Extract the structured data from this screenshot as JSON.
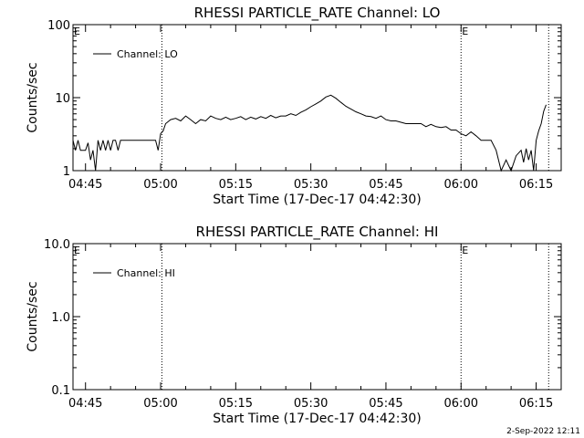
{
  "footer_date": "2-Sep-2022 12:11",
  "colors": {
    "background": "#ffffff",
    "ink": "#000000"
  },
  "chart_data": [
    {
      "type": "line",
      "title": "RHESSI PARTICLE_RATE Channel: LO",
      "xlabel": "Start Time (17-Dec-17 04:42:30)",
      "ylabel": "Counts/sec",
      "yscale": "log",
      "ylim": [
        1,
        100
      ],
      "xlim": [
        "04:42:30",
        "06:20:00"
      ],
      "yticks": [
        "1",
        "10",
        "100"
      ],
      "xticks": [
        "04:45",
        "05:00",
        "05:15",
        "05:30",
        "05:45",
        "06:00",
        "06:15"
      ],
      "grid": false,
      "legend": {
        "position": "top-left",
        "entries": [
          "Channel: LO"
        ]
      },
      "annotations": [
        {
          "text": "E",
          "x": "04:42:30"
        },
        {
          "text": "E",
          "x": "06:00:00"
        }
      ],
      "vlines": [
        "05:00:15",
        "06:00:00",
        "06:17:30"
      ],
      "series": [
        {
          "name": "Channel: LO",
          "x": [
            "04:42:30",
            "04:43:00",
            "04:43:30",
            "04:44:00",
            "04:44:30",
            "04:45:00",
            "04:45:30",
            "04:46:00",
            "04:46:30",
            "04:47:00",
            "04:47:30",
            "04:48:00",
            "04:48:30",
            "04:49:00",
            "04:49:30",
            "04:50:00",
            "04:50:30",
            "04:51:00",
            "04:51:30",
            "04:52:00",
            "04:53:00",
            "04:54:00",
            "04:55:00",
            "04:55:30",
            "04:56:00",
            "04:57:00",
            "04:58:00",
            "04:59:00",
            "04:59:30",
            "05:00:00",
            "05:00:30",
            "05:01:00",
            "05:02:00",
            "05:03:00",
            "05:04:00",
            "05:05:00",
            "05:06:00",
            "05:07:00",
            "05:08:00",
            "05:09:00",
            "05:10:00",
            "05:11:00",
            "05:12:00",
            "05:13:00",
            "05:14:00",
            "05:15:00",
            "05:16:00",
            "05:17:00",
            "05:18:00",
            "05:19:00",
            "05:20:00",
            "05:21:00",
            "05:22:00",
            "05:23:00",
            "05:24:00",
            "05:25:00",
            "05:26:00",
            "05:27:00",
            "05:28:00",
            "05:29:00",
            "05:30:00",
            "05:31:00",
            "05:32:00",
            "05:33:00",
            "05:34:00",
            "05:35:00",
            "05:36:00",
            "05:37:00",
            "05:38:00",
            "05:39:00",
            "05:40:00",
            "05:41:00",
            "05:42:00",
            "05:43:00",
            "05:44:00",
            "05:45:00",
            "05:46:00",
            "05:47:00",
            "05:48:00",
            "05:49:00",
            "05:50:00",
            "05:51:00",
            "05:52:00",
            "05:53:00",
            "05:54:00",
            "05:55:00",
            "05:56:00",
            "05:57:00",
            "05:58:00",
            "05:59:00",
            "06:00:00",
            "06:01:00",
            "06:02:00",
            "06:03:00",
            "06:04:00",
            "06:05:00",
            "06:06:00",
            "06:07:00",
            "06:08:00",
            "06:09:00",
            "06:10:00",
            "06:11:00",
            "06:12:00",
            "06:12:30",
            "06:13:00",
            "06:13:30",
            "06:14:00",
            "06:14:30",
            "06:15:00",
            "06:15:30",
            "06:16:00",
            "06:16:30",
            "06:17:00"
          ],
          "values": [
            2.6,
            1.9,
            2.6,
            1.9,
            1.9,
            1.9,
            2.4,
            1.4,
            1.9,
            1.0,
            2.6,
            1.9,
            2.6,
            1.9,
            2.6,
            1.9,
            2.6,
            2.6,
            1.9,
            2.6,
            2.6,
            2.6,
            2.6,
            2.6,
            2.6,
            2.6,
            2.6,
            2.6,
            1.9,
            3.2,
            3.5,
            4.4,
            5.0,
            5.2,
            4.8,
            5.6,
            5.0,
            4.4,
            5.0,
            4.8,
            5.6,
            5.2,
            5.0,
            5.4,
            5.0,
            5.2,
            5.5,
            5.0,
            5.4,
            5.1,
            5.5,
            5.2,
            5.7,
            5.3,
            5.6,
            5.6,
            6.0,
            5.7,
            6.3,
            6.8,
            7.5,
            8.2,
            9.0,
            10.2,
            10.8,
            9.8,
            8.6,
            7.6,
            7.0,
            6.4,
            6.0,
            5.6,
            5.5,
            5.2,
            5.6,
            5.0,
            4.8,
            4.8,
            4.6,
            4.4,
            4.4,
            4.4,
            4.4,
            4.0,
            4.3,
            4.0,
            3.9,
            4.0,
            3.6,
            3.6,
            3.2,
            3.0,
            3.4,
            3.0,
            2.6,
            2.6,
            2.6,
            1.9,
            1.0,
            1.4,
            1.0,
            1.6,
            1.9,
            1.3,
            2.0,
            1.4,
            1.9,
            1.0,
            2.6,
            3.5,
            4.4,
            6.5,
            8.0
          ]
        }
      ]
    },
    {
      "type": "line",
      "title": "RHESSI PARTICLE_RATE Channel: HI",
      "xlabel": "Start Time (17-Dec-17 04:42:30)",
      "ylabel": "Counts/sec",
      "yscale": "log",
      "ylim": [
        0.1,
        10
      ],
      "xlim": [
        "04:42:30",
        "06:20:00"
      ],
      "yticks": [
        "0.1",
        "1.0",
        "10.0"
      ],
      "xticks": [
        "04:45",
        "05:00",
        "05:15",
        "05:30",
        "05:45",
        "06:00",
        "06:15"
      ],
      "grid": false,
      "legend": {
        "position": "top-left",
        "entries": [
          "Channel: HI"
        ]
      },
      "annotations": [
        {
          "text": "E",
          "x": "04:42:30"
        },
        {
          "text": "E",
          "x": "06:00:00"
        }
      ],
      "vlines": [
        "05:00:15",
        "06:00:00",
        "06:17:30"
      ],
      "series": [
        {
          "name": "Channel: HI",
          "x": [],
          "values": []
        }
      ]
    }
  ]
}
